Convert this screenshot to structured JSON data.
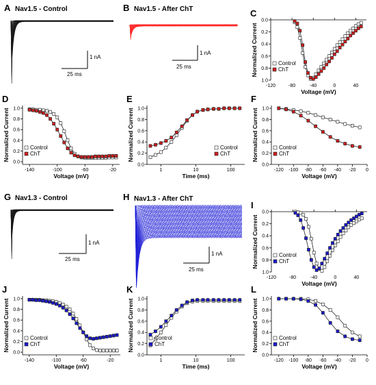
{
  "legend": {
    "control": "Control",
    "cht": "ChT"
  },
  "colors": {
    "control": "#ffffff",
    "cht_nav15": "#cc1f1f",
    "cht_nav13": "#1a1acc",
    "trace_control": "#1a1a1a",
    "trace_red": "#ff2a2a",
    "trace_blue": "#1f1fd6",
    "fit": "#222222"
  },
  "panels": {
    "A": {
      "letter": "A",
      "title": "Nav1.5 - Control",
      "scale_y": "1 nA",
      "scale_x": "25 ms"
    },
    "B": {
      "letter": "B",
      "title": "Nav1.5 - After ChT",
      "scale_y": "1 nA",
      "scale_x": "25 ms"
    },
    "G": {
      "letter": "G",
      "title": "Nav1.3 - Control",
      "scale_y": "1 nA",
      "scale_x": "25 ms"
    },
    "H": {
      "letter": "H",
      "title": "Nav1.3 - After ChT",
      "scale_y": "1 nA",
      "scale_x": "25 ms"
    }
  },
  "chart_data": [
    {
      "id": "C",
      "letter": "C",
      "type": "scatter",
      "xlabel": "Voltage (mV)",
      "ylabel": "Normalized Current",
      "xlim": [
        -120,
        60
      ],
      "ylim": [
        0,
        1
      ],
      "y_inverted": true,
      "xticks": [
        -120,
        -80,
        -40,
        0,
        40
      ],
      "xticklabels": [
        "-120",
        "-80",
        "-40",
        "0",
        "40"
      ],
      "yticks": [
        0,
        0.2,
        0.4,
        0.6,
        0.8,
        1.0
      ],
      "yticklabels": [
        "0.0",
        "0.2",
        "0.4",
        "0.6",
        "0.8",
        "1.0"
      ],
      "legend_position": "bottom-left",
      "x": [
        -75,
        -70,
        -65,
        -60,
        -55,
        -50,
        -45,
        -40,
        -35,
        -30,
        -25,
        -20,
        -15,
        -10,
        -5,
        0,
        5,
        10,
        15,
        20,
        25,
        30,
        35,
        40,
        45,
        50
      ],
      "series": [
        {
          "name": "Control",
          "values": [
            0.04,
            0.12,
            0.3,
            0.55,
            0.78,
            0.92,
            0.98,
            0.96,
            0.9,
            0.84,
            0.78,
            0.72,
            0.66,
            0.6,
            0.54,
            0.48,
            0.42,
            0.37,
            0.32,
            0.27,
            0.22,
            0.18,
            0.14,
            0.1,
            0.07,
            0.05
          ]
        },
        {
          "name": "ChT",
          "values": [
            0.02,
            0.06,
            0.18,
            0.42,
            0.7,
            0.88,
            0.96,
            0.98,
            0.95,
            0.9,
            0.85,
            0.8,
            0.74,
            0.69,
            0.63,
            0.57,
            0.52,
            0.46,
            0.41,
            0.36,
            0.31,
            0.26,
            0.22,
            0.18,
            0.14,
            0.11
          ]
        }
      ]
    },
    {
      "id": "D",
      "letter": "D",
      "type": "scatter",
      "xlabel": "Voltage (mV)",
      "ylabel": "Normalized Current",
      "xlim": [
        -150,
        -10
      ],
      "ylim": [
        -0.05,
        1.05
      ],
      "xticks": [
        -140,
        -100,
        -60,
        -20
      ],
      "xticklabels": [
        "-140",
        "-100",
        "-60",
        "-20"
      ],
      "yticks": [
        0,
        0.2,
        0.4,
        0.6,
        0.8,
        1.0
      ],
      "yticklabels": [
        "0.0",
        "0.2",
        "0.4",
        "0.6",
        "0.8",
        "1.0"
      ],
      "legend_position": "bottom-left",
      "x": [
        -140,
        -135,
        -130,
        -125,
        -120,
        -115,
        -110,
        -105,
        -100,
        -95,
        -90,
        -85,
        -80,
        -75,
        -70,
        -65,
        -60,
        -55,
        -50,
        -45,
        -40,
        -35,
        -30,
        -25,
        -20,
        -15
      ],
      "series": [
        {
          "name": "Control",
          "values": [
            0.98,
            0.98,
            0.97,
            0.97,
            0.96,
            0.95,
            0.93,
            0.89,
            0.83,
            0.72,
            0.57,
            0.4,
            0.25,
            0.15,
            0.1,
            0.08,
            0.07,
            0.07,
            0.07,
            0.07,
            0.07,
            0.07,
            0.07,
            0.08,
            0.08,
            0.08
          ]
        },
        {
          "name": "ChT",
          "values": [
            0.97,
            0.96,
            0.95,
            0.93,
            0.91,
            0.87,
            0.8,
            0.71,
            0.6,
            0.48,
            0.36,
            0.25,
            0.17,
            0.12,
            0.1,
            0.09,
            0.09,
            0.09,
            0.09,
            0.1,
            0.1,
            0.1,
            0.1,
            0.11,
            0.11,
            0.11
          ]
        }
      ]
    },
    {
      "id": "E",
      "letter": "E",
      "type": "scatter",
      "xlabel": "Time (ms)",
      "ylabel": "Normalized Current",
      "xscale": "log",
      "xlim": [
        0.4,
        250
      ],
      "ylim": [
        0,
        1.05
      ],
      "xticks": [
        1,
        10,
        100
      ],
      "xticklabels": [
        "1",
        "10",
        "100"
      ],
      "yticks": [
        0,
        0.2,
        0.4,
        0.6,
        0.8,
        1.0
      ],
      "yticklabels": [
        "0.0",
        "0.2",
        "0.4",
        "0.6",
        "0.8",
        "1.0"
      ],
      "legend_position": "bottom-right",
      "x": [
        0.5,
        0.7,
        1,
        1.4,
        2,
        2.8,
        4,
        5.6,
        8,
        11,
        16,
        22,
        32,
        45,
        64,
        90,
        128,
        180
      ],
      "series": [
        {
          "name": "Control",
          "values": [
            0.13,
            0.17,
            0.22,
            0.3,
            0.4,
            0.52,
            0.65,
            0.78,
            0.88,
            0.94,
            0.97,
            0.98,
            0.99,
            0.99,
            1.0,
            1.0,
            1.0,
            1.0
          ]
        },
        {
          "name": "ChT",
          "values": [
            0.33,
            0.35,
            0.38,
            0.42,
            0.48,
            0.57,
            0.68,
            0.79,
            0.88,
            0.94,
            0.97,
            0.98,
            0.99,
            0.99,
            1.0,
            1.0,
            1.0,
            1.0
          ]
        }
      ]
    },
    {
      "id": "F",
      "letter": "F",
      "type": "scatter",
      "xlabel": "Voltage (mV)",
      "ylabel": "Normalized Current",
      "xlim": [
        -130,
        0
      ],
      "ylim": [
        0,
        1.05
      ],
      "xticks": [
        -120,
        -100,
        -80,
        -60,
        -40,
        -20,
        0
      ],
      "xticklabels": [
        "-120",
        "-100",
        "-80",
        "-60",
        "-40",
        "-20",
        "0"
      ],
      "yticks": [
        0,
        0.2,
        0.4,
        0.6,
        0.8,
        1.0
      ],
      "yticklabels": [
        "0.0",
        "0.2",
        "0.4",
        "0.6",
        "0.8",
        "1.0"
      ],
      "legend_position": "bottom-left",
      "x": [
        -120,
        -110,
        -100,
        -90,
        -80,
        -70,
        -60,
        -50,
        -40,
        -30,
        -20,
        -10
      ],
      "series": [
        {
          "name": "Control",
          "values": [
            1.0,
            0.99,
            0.97,
            0.95,
            0.92,
            0.88,
            0.84,
            0.8,
            0.76,
            0.72,
            0.69,
            0.66
          ]
        },
        {
          "name": "ChT",
          "values": [
            1.0,
            0.98,
            0.94,
            0.87,
            0.78,
            0.68,
            0.58,
            0.49,
            0.42,
            0.37,
            0.33,
            0.31
          ]
        }
      ]
    },
    {
      "id": "I",
      "letter": "I",
      "type": "scatter",
      "xlabel": "Voltage (mV)",
      "ylabel": "Normalized Current",
      "xlim": [
        -120,
        60
      ],
      "ylim": [
        0,
        1
      ],
      "y_inverted": true,
      "xticks": [
        -120,
        -80,
        -40,
        0,
        40
      ],
      "xticklabels": [
        "-120",
        "-80",
        "-40",
        "0",
        "40"
      ],
      "yticks": [
        0,
        0.2,
        0.4,
        0.6,
        0.8,
        1.0
      ],
      "yticklabels": [
        "0.0",
        "0.2",
        "0.4",
        "0.6",
        "0.8",
        "1.0"
      ],
      "legend_position": "bottom-left",
      "x": [
        -75,
        -70,
        -65,
        -60,
        -55,
        -50,
        -45,
        -40,
        -35,
        -30,
        -25,
        -20,
        -15,
        -10,
        -5,
        0,
        5,
        10,
        15,
        20,
        25,
        30,
        35,
        40,
        45,
        50
      ],
      "series": [
        {
          "name": "Control",
          "values": [
            0.0,
            0.01,
            0.02,
            0.05,
            0.12,
            0.25,
            0.45,
            0.68,
            0.86,
            0.95,
            0.98,
            0.92,
            0.82,
            0.73,
            0.64,
            0.56,
            0.49,
            0.42,
            0.36,
            0.31,
            0.26,
            0.22,
            0.19,
            0.16,
            0.13,
            0.11
          ]
        },
        {
          "name": "ChT",
          "values": [
            0.02,
            0.06,
            0.14,
            0.27,
            0.44,
            0.63,
            0.8,
            0.92,
            0.97,
            0.94,
            0.86,
            0.78,
            0.69,
            0.6,
            0.52,
            0.45,
            0.38,
            0.32,
            0.27,
            0.22,
            0.18,
            0.14,
            0.11,
            0.08,
            0.05,
            0.03
          ]
        }
      ]
    },
    {
      "id": "J",
      "letter": "J",
      "type": "scatter",
      "xlabel": "Voltage (mV)",
      "ylabel": "Normalized Current",
      "xlim": [
        -150,
        -5
      ],
      "ylim": [
        -0.05,
        1.05
      ],
      "xticks": [
        -140,
        -100,
        -60,
        -20
      ],
      "xticklabels": [
        "-140",
        "-100",
        "-60",
        "-20"
      ],
      "yticks": [
        0,
        0.2,
        0.4,
        0.6,
        0.8,
        1.0
      ],
      "yticklabels": [
        "0.0",
        "0.2",
        "0.4",
        "0.6",
        "0.8",
        "1.0"
      ],
      "legend_position": "bottom-left",
      "x": [
        -140,
        -135,
        -130,
        -125,
        -120,
        -115,
        -110,
        -105,
        -100,
        -95,
        -90,
        -85,
        -80,
        -75,
        -70,
        -65,
        -60,
        -55,
        -50,
        -45,
        -40,
        -35,
        -30,
        -25,
        -20,
        -15,
        -10
      ],
      "series": [
        {
          "name": "Control",
          "values": [
            0.98,
            0.98,
            0.98,
            0.98,
            0.97,
            0.97,
            0.96,
            0.95,
            0.94,
            0.92,
            0.89,
            0.85,
            0.8,
            0.72,
            0.62,
            0.5,
            0.37,
            0.24,
            0.13,
            0.07,
            0.04,
            0.03,
            0.03,
            0.03,
            0.03,
            0.03,
            0.03
          ]
        },
        {
          "name": "ChT",
          "values": [
            0.98,
            0.98,
            0.97,
            0.97,
            0.96,
            0.95,
            0.94,
            0.92,
            0.9,
            0.87,
            0.83,
            0.78,
            0.71,
            0.63,
            0.54,
            0.45,
            0.37,
            0.3,
            0.26,
            0.25,
            0.26,
            0.27,
            0.28,
            0.29,
            0.3,
            0.31,
            0.32
          ]
        }
      ]
    },
    {
      "id": "K",
      "letter": "K",
      "type": "scatter",
      "xlabel": "Time (ms)",
      "ylabel": "Normalized Current",
      "xscale": "log",
      "xlim": [
        0.4,
        250
      ],
      "ylim": [
        0,
        1.05
      ],
      "xticks": [
        1,
        10,
        100
      ],
      "xticklabels": [
        "1",
        "10",
        "100"
      ],
      "yticks": [
        0,
        0.2,
        0.4,
        0.6,
        0.8,
        1.0
      ],
      "yticklabels": [
        "0.0",
        "0.2",
        "0.4",
        "0.6",
        "0.8",
        "1.0"
      ],
      "legend_position": "bottom-left",
      "x": [
        0.5,
        0.7,
        1,
        1.4,
        2,
        2.8,
        4,
        5.6,
        8,
        11,
        16,
        22,
        32,
        45,
        64,
        90,
        128,
        180
      ],
      "series": [
        {
          "name": "Control",
          "values": [
            0.17,
            0.28,
            0.4,
            0.53,
            0.66,
            0.77,
            0.86,
            0.92,
            0.95,
            0.96,
            0.96,
            0.96,
            0.96,
            0.96,
            0.96,
            0.96,
            0.96,
            0.96
          ]
        },
        {
          "name": "ChT",
          "values": [
            0.36,
            0.42,
            0.5,
            0.6,
            0.7,
            0.8,
            0.88,
            0.94,
            0.97,
            0.98,
            0.98,
            0.98,
            0.98,
            0.98,
            0.98,
            0.98,
            0.98,
            0.98
          ]
        }
      ]
    },
    {
      "id": "L",
      "letter": "L",
      "type": "scatter",
      "xlabel": "Voltage (mV)",
      "ylabel": "Normalized Current",
      "xlim": [
        -130,
        0
      ],
      "ylim": [
        0,
        1.05
      ],
      "xticks": [
        -120,
        -100,
        -80,
        -60,
        -40,
        -20,
        0
      ],
      "xticklabels": [
        "-120",
        "-100",
        "-80",
        "-60",
        "-40",
        "-20",
        "0"
      ],
      "yticks": [
        0,
        0.2,
        0.4,
        0.6,
        0.8,
        1.0
      ],
      "yticklabels": [
        "0.0",
        "0.2",
        "0.4",
        "0.6",
        "0.8",
        "1.0"
      ],
      "legend_position": "bottom-left",
      "x": [
        -120,
        -110,
        -100,
        -90,
        -80,
        -70,
        -60,
        -50,
        -40,
        -30,
        -20,
        -10
      ],
      "series": [
        {
          "name": "Control",
          "values": [
            1.0,
            1.0,
            1.0,
            1.0,
            0.99,
            0.96,
            0.9,
            0.8,
            0.67,
            0.52,
            0.4,
            0.33
          ]
        },
        {
          "name": "ChT",
          "values": [
            1.0,
            1.0,
            1.0,
            0.99,
            0.96,
            0.89,
            0.75,
            0.57,
            0.42,
            0.33,
            0.28,
            0.26
          ]
        }
      ]
    }
  ]
}
